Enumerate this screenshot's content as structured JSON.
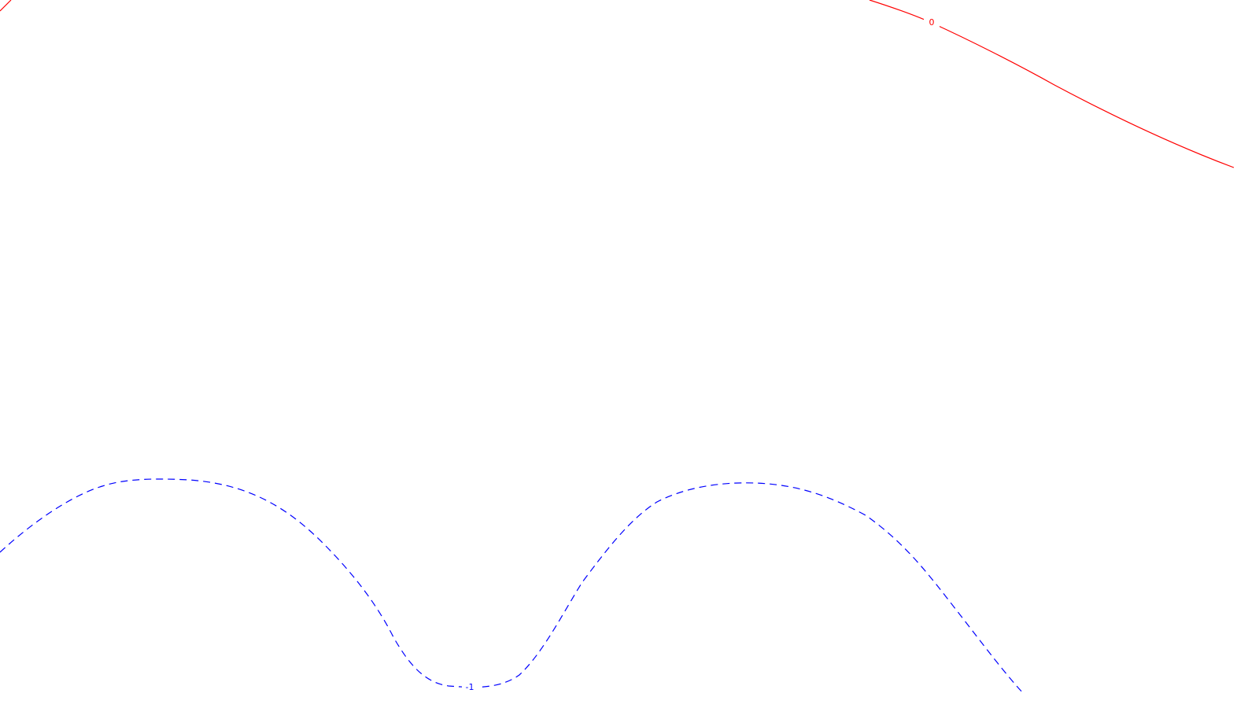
{
  "chart_data": {
    "type": "contour",
    "title": "",
    "xlabel": "",
    "ylabel": "",
    "grid": false,
    "legend": false,
    "series": [
      {
        "level": 0,
        "label": "0",
        "color": "#ff0000",
        "line_style": "solid"
      },
      {
        "level": -1,
        "label": "-1",
        "color": "#0000ff",
        "line_style": "dashed"
      }
    ]
  }
}
